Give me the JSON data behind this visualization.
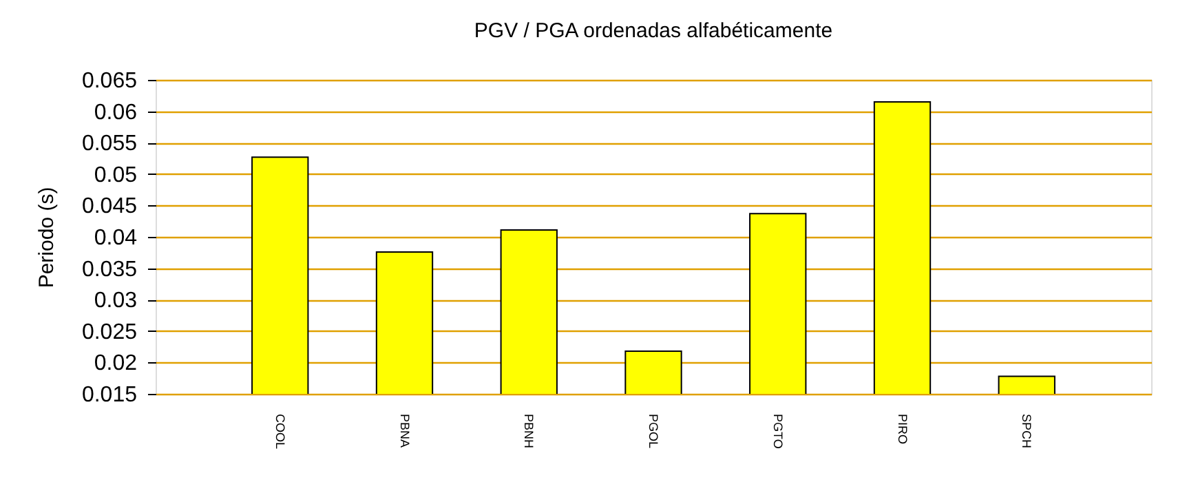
{
  "chart_data": {
    "type": "bar",
    "title": "PGV / PGA ordenadas alfabéticamente",
    "ylabel": "Periodo (s)",
    "categories": [
      "COOL",
      "PBNA",
      "PBNH",
      "PGOL",
      "PGTO",
      "PIRO",
      "SPCH"
    ],
    "values": [
      0.0527,
      0.0376,
      0.0411,
      0.0218,
      0.0437,
      0.0615,
      0.0178
    ],
    "color": "#ffff00",
    "ylim": [
      0.015,
      0.065
    ],
    "yticks": [
      0.015,
      0.02,
      0.025,
      0.03,
      0.035,
      0.04,
      0.045,
      0.05,
      0.055,
      0.06,
      0.065
    ],
    "grid": "y"
  }
}
